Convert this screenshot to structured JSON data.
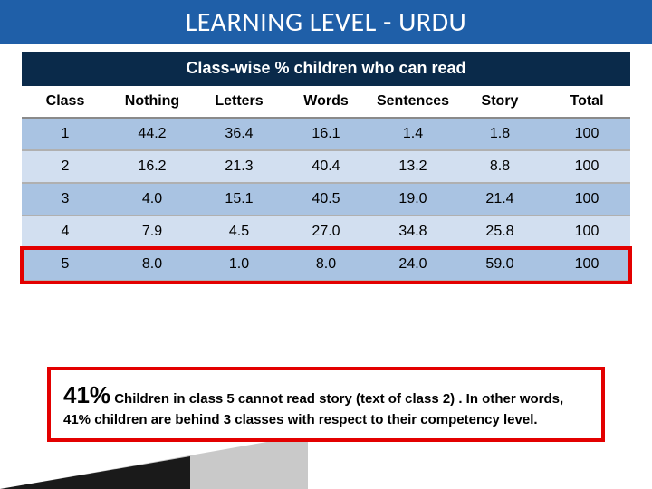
{
  "title": "LEARNING LEVEL - URDU",
  "table": {
    "caption": "Class-wise % children who can read",
    "columns": [
      "Class",
      "Nothing",
      "Letters",
      "Words",
      "Sentences",
      "Story",
      "Total"
    ],
    "rows": [
      [
        "1",
        "44.2",
        "36.4",
        "16.1",
        "1.4",
        "1.8",
        "100"
      ],
      [
        "2",
        "16.2",
        "21.3",
        "40.4",
        "13.2",
        "8.8",
        "100"
      ],
      [
        "3",
        "4.0",
        "15.1",
        "40.5",
        "19.0",
        "21.4",
        "100"
      ],
      [
        "4",
        "7.9",
        "4.5",
        "27.0",
        "34.8",
        "25.8",
        "100"
      ],
      [
        "5",
        "8.0",
        "1.0",
        "8.0",
        "24.0",
        "59.0",
        "100"
      ]
    ],
    "highlight_row_index": 4,
    "band_colors": [
      "#a9c3e2",
      "#d2dff0"
    ],
    "header_bg": "#0a2a4a",
    "border_color": "#b0b0b0"
  },
  "callout": {
    "pct": "41%",
    "text": " Children in class 5 cannot read story (text of class 2) . In other words, 41% children are behind 3 classes with respect to their competency level.",
    "border_color": "#e30000"
  },
  "colors": {
    "title_bg": "#1f5fa8",
    "title_fg": "#ffffff",
    "highlight_border": "#e30000"
  }
}
